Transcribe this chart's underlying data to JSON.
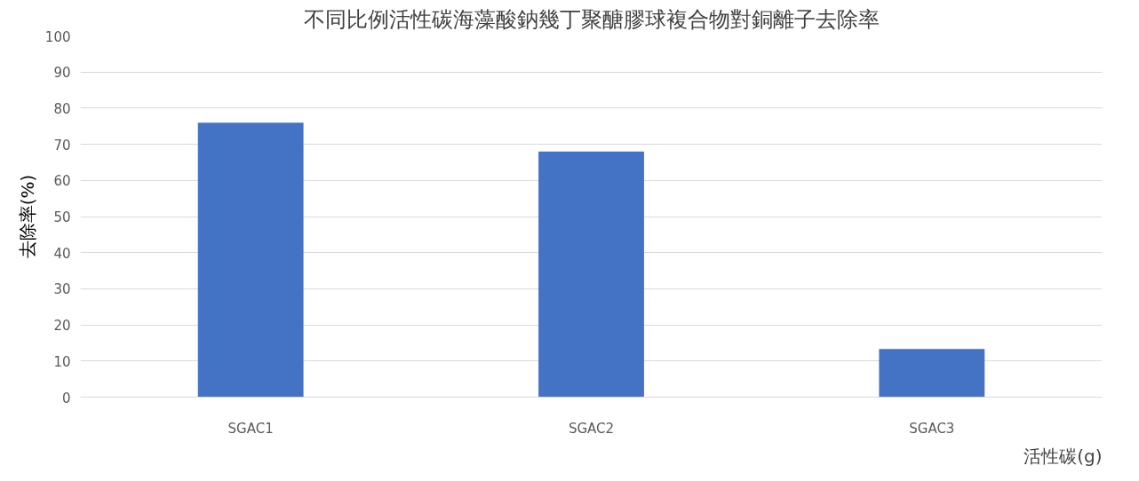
{
  "chart_data": {
    "type": "bar",
    "title": "不同比例活性碳海藻酸鈉幾丁聚醣膠球複合物對銅離子去除率",
    "xlabel": "活性碳(g)",
    "ylabel": "去除率(%)",
    "categories": [
      "SGAC1",
      "SGAC2",
      "SGAC3"
    ],
    "values": [
      76,
      68,
      13.3
    ],
    "color": "#4472c4",
    "ylim": [
      0,
      100
    ],
    "yticks": [
      0,
      10,
      20,
      30,
      40,
      50,
      60,
      70,
      80,
      90,
      100
    ],
    "grid": "y"
  }
}
